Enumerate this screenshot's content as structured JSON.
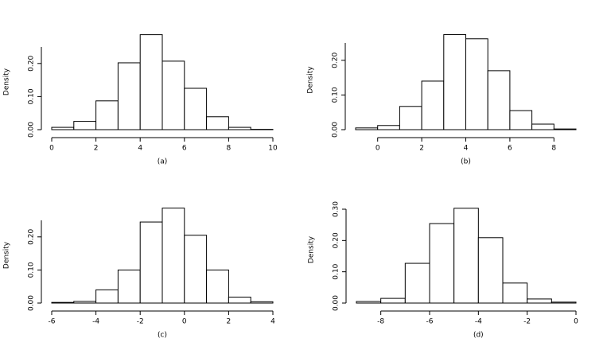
{
  "chart_data": [
    {
      "type": "histogram",
      "xlabel": "(a)",
      "ylabel": "Density",
      "bins": [
        0,
        1,
        2,
        3,
        4,
        5,
        6,
        7,
        8,
        9,
        10
      ],
      "values": [
        0.007,
        0.025,
        0.087,
        0.202,
        0.287,
        0.207,
        0.125,
        0.039,
        0.007,
        0.001
      ],
      "xlim": [
        0,
        10
      ],
      "xticks": [
        0,
        2,
        4,
        6,
        8,
        10
      ],
      "ylim": [
        0,
        0.25
      ],
      "yticks": [
        {
          "value": 0,
          "label": "0.00"
        },
        {
          "value": 0.1,
          "label": "0.10"
        },
        {
          "value": 0.2,
          "label": "0.20"
        }
      ]
    },
    {
      "type": "histogram",
      "xlabel": "(b)",
      "ylabel": "Density",
      "bins": [
        -1,
        0,
        1,
        2,
        3,
        4,
        5,
        6,
        7,
        8,
        9
      ],
      "values": [
        0.005,
        0.012,
        0.067,
        0.14,
        0.274,
        0.262,
        0.17,
        0.055,
        0.016,
        0.002
      ],
      "xlim": [
        -1,
        9
      ],
      "xticks": [
        0,
        2,
        4,
        6,
        8
      ],
      "ylim": [
        0,
        0.25
      ],
      "yticks": [
        {
          "value": 0,
          "label": "0.00"
        },
        {
          "value": 0.1,
          "label": "0.10"
        },
        {
          "value": 0.2,
          "label": "0.20"
        }
      ]
    },
    {
      "type": "histogram",
      "xlabel": "(c)",
      "ylabel": "Density",
      "bins": [
        -6,
        -5,
        -4,
        -3,
        -2,
        -1,
        0,
        1,
        2,
        3,
        4
      ],
      "values": [
        0.002,
        0.005,
        0.04,
        0.1,
        0.245,
        0.287,
        0.205,
        0.1,
        0.018,
        0.004
      ],
      "xlim": [
        -6,
        4
      ],
      "xticks": [
        -6,
        -4,
        -2,
        0,
        2,
        4
      ],
      "ylim": [
        0,
        0.25
      ],
      "yticks": [
        {
          "value": 0,
          "label": "0.00"
        },
        {
          "value": 0.1,
          "label": "0.10"
        },
        {
          "value": 0.2,
          "label": "0.20"
        }
      ]
    },
    {
      "type": "histogram",
      "xlabel": "(d)",
      "ylabel": "Density",
      "bins": [
        -9,
        -8,
        -7,
        -6,
        -5,
        -4,
        -3,
        -2,
        -1,
        0
      ],
      "values": [
        0.005,
        0.015,
        0.127,
        0.254,
        0.303,
        0.209,
        0.064,
        0.013,
        0.003
      ],
      "xlim": [
        -9,
        0
      ],
      "xticks": [
        -8,
        -6,
        -4,
        -2,
        0
      ],
      "ylim": [
        0,
        0.3
      ],
      "yticks": [
        {
          "value": 0,
          "label": "0.00"
        },
        {
          "value": 0.1,
          "label": "0.10"
        },
        {
          "value": 0.2,
          "label": "0.20"
        },
        {
          "value": 0.3,
          "label": "0.30"
        }
      ]
    }
  ]
}
